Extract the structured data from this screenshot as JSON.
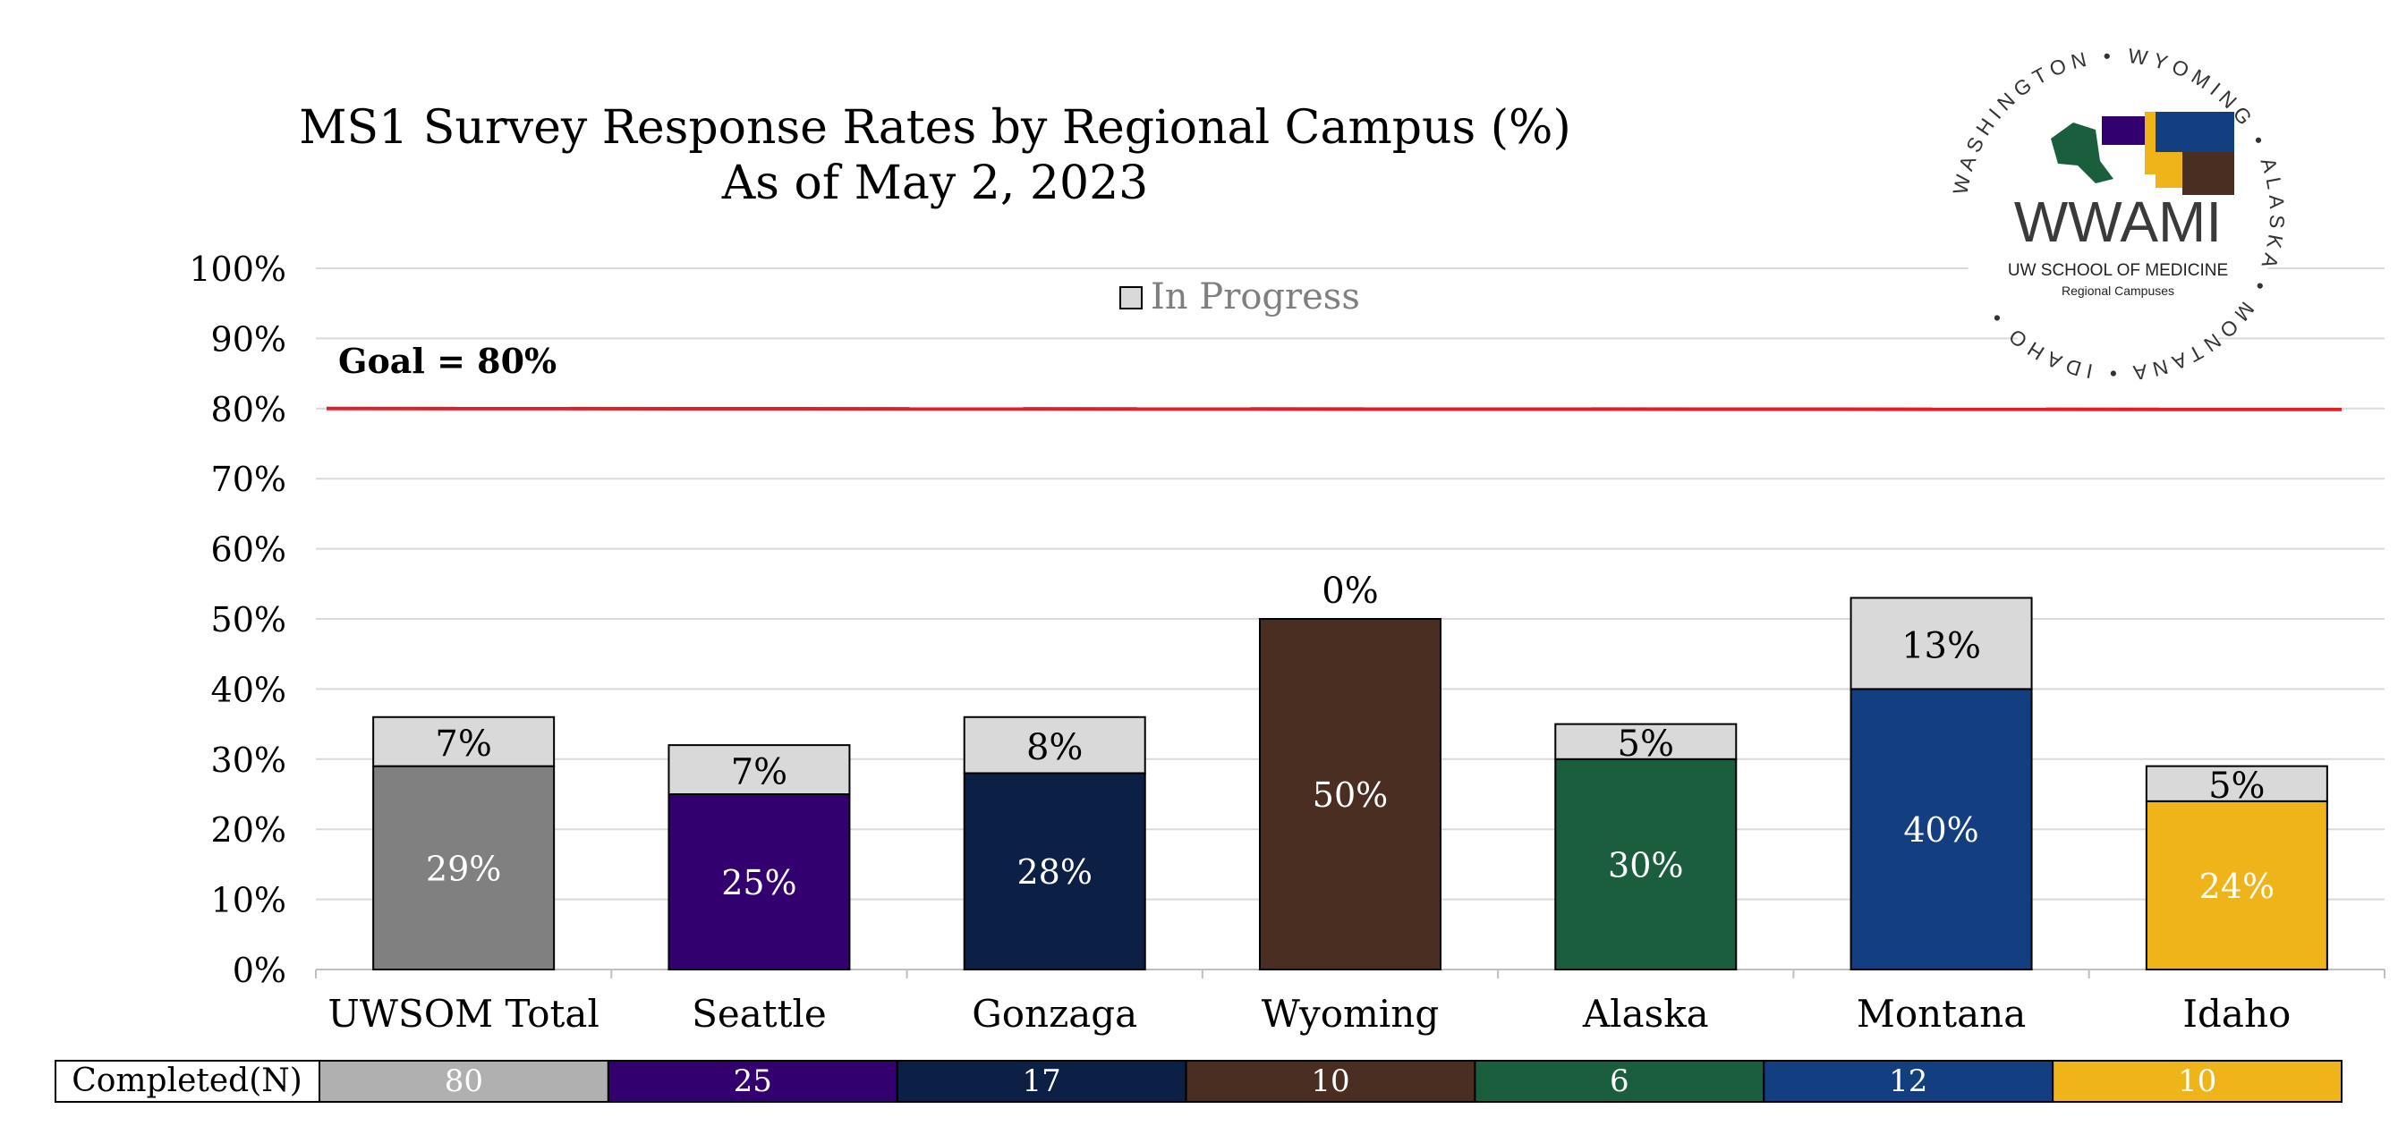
{
  "chart_data": {
    "type": "bar",
    "title": "MS1 Survey Response Rates by Regional Campus (%)",
    "subtitle": "As of May 2, 2023",
    "categories": [
      "UWSOM Total",
      "Seattle",
      "Gonzaga",
      "Wyoming",
      "Alaska",
      "Montana",
      "Idaho"
    ],
    "series": [
      {
        "values": [
          29,
          25,
          28,
          50,
          30,
          40,
          24
        ]
      },
      {
        "name": "In Progress",
        "values": [
          7,
          7,
          8,
          0,
          5,
          13,
          5
        ]
      }
    ],
    "completed_labels": [
      "29%",
      "25%",
      "28%",
      "50%",
      "30%",
      "40%",
      "24%"
    ],
    "in_progress_labels": [
      "7%",
      "7%",
      "8%",
      "0%",
      "5%",
      "13%",
      "5%"
    ],
    "bar_colors": [
      "#808080",
      "#33006f",
      "#0c1f45",
      "#4a2e22",
      "#1b5e3e",
      "#133f80",
      "#f0b41b"
    ],
    "in_progress_color": "#d9d9d9",
    "ylim": [
      0,
      100
    ],
    "yticks": [
      "0%",
      "10%",
      "20%",
      "30%",
      "40%",
      "50%",
      "60%",
      "70%",
      "80%",
      "90%",
      "100%"
    ],
    "goal": {
      "value": 80,
      "label": "Goal = 80%",
      "color": "#e41e26"
    },
    "legend": {
      "label": "In Progress",
      "position": "top-center"
    },
    "grid": true,
    "table": {
      "header": "Completed(N)",
      "values": [
        "80",
        "25",
        "17",
        "10",
        "6",
        "12",
        "10"
      ],
      "cell_colors": [
        "#b0b0b0",
        "#33006f",
        "#0c1f45",
        "#4a2e22",
        "#1b5e3e",
        "#133f80",
        "#f0b41b"
      ]
    }
  },
  "logo": {
    "center_text": "WWAMI",
    "sub_text": "UW SCHOOL OF MEDICINE",
    "sub_text2": "Regional Campuses",
    "ring_words": [
      "WASHINGTON",
      "WYOMING",
      "ALASKA",
      "MONTANA",
      "IDAHO"
    ]
  }
}
